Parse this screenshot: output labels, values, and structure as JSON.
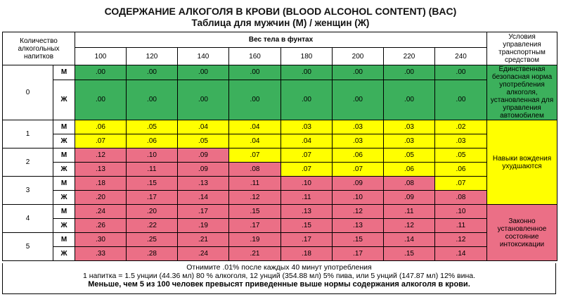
{
  "title": "СОДЕРЖАНИЕ АЛКОГОЛЯ В КРОВИ (BLOOD ALCOHOL CONTENT) (BAC)",
  "subtitle": "Таблица для мужчин (М) / женщин (Ж)",
  "header": {
    "drinks_label": "Количество алкогольных напитков",
    "weight_label": "Вес тела в фунтах",
    "conditions_label": "Условия управления транспортным средством",
    "weights": [
      "100",
      "120",
      "140",
      "160",
      "180",
      "200",
      "220",
      "240"
    ]
  },
  "colors": {
    "green": "#3cb05c",
    "yellow": "#ffff00",
    "red": "#eb6f86"
  },
  "groups": [
    {
      "drinks": "0",
      "rows": [
        {
          "sex": "М",
          "values": [
            ".00",
            ".00",
            ".00",
            ".00",
            ".00",
            ".00",
            ".00",
            ".00"
          ],
          "colors": [
            "g",
            "g",
            "g",
            "g",
            "g",
            "g",
            "g",
            "g"
          ]
        },
        {
          "sex": "Ж",
          "values": [
            ".00",
            ".00",
            ".00",
            ".00",
            ".00",
            ".00",
            ".00",
            ".00"
          ],
          "colors": [
            "g",
            "g",
            "g",
            "g",
            "g",
            "g",
            "g",
            "g"
          ]
        }
      ]
    },
    {
      "drinks": "1",
      "rows": [
        {
          "sex": "М",
          "values": [
            ".06",
            ".05",
            ".04",
            ".04",
            ".03",
            ".03",
            ".03",
            ".02"
          ],
          "colors": [
            "y",
            "y",
            "y",
            "y",
            "y",
            "y",
            "y",
            "y"
          ]
        },
        {
          "sex": "Ж",
          "values": [
            ".07",
            ".06",
            ".05",
            ".04",
            ".04",
            ".03",
            ".03",
            ".03"
          ],
          "colors": [
            "y",
            "y",
            "y",
            "y",
            "y",
            "y",
            "y",
            "y"
          ]
        }
      ]
    },
    {
      "drinks": "2",
      "rows": [
        {
          "sex": "М",
          "values": [
            ".12",
            ".10",
            ".09",
            ".07",
            ".07",
            ".06",
            ".05",
            ".05"
          ],
          "colors": [
            "r",
            "r",
            "r",
            "y",
            "y",
            "y",
            "y",
            "y"
          ]
        },
        {
          "sex": "Ж",
          "values": [
            ".13",
            ".11",
            ".09",
            ".08",
            ".07",
            ".07",
            ".06",
            ".06"
          ],
          "colors": [
            "r",
            "r",
            "r",
            "r",
            "y",
            "y",
            "y",
            "y"
          ]
        }
      ]
    },
    {
      "drinks": "3",
      "rows": [
        {
          "sex": "М",
          "values": [
            ".18",
            ".15",
            ".13",
            ".11",
            ".10",
            ".09",
            ".08",
            ".07"
          ],
          "colors": [
            "r",
            "r",
            "r",
            "r",
            "r",
            "r",
            "r",
            "y"
          ]
        },
        {
          "sex": "Ж",
          "values": [
            ".20",
            ".17",
            ".14",
            ".12",
            ".11",
            ".10",
            ".09",
            ".08"
          ],
          "colors": [
            "r",
            "r",
            "r",
            "r",
            "r",
            "r",
            "r",
            "r"
          ]
        }
      ]
    },
    {
      "drinks": "4",
      "rows": [
        {
          "sex": "М",
          "values": [
            ".24",
            ".20",
            ".17",
            ".15",
            ".13",
            ".12",
            ".11",
            ".10"
          ],
          "colors": [
            "r",
            "r",
            "r",
            "r",
            "r",
            "r",
            "r",
            "r"
          ]
        },
        {
          "sex": "Ж",
          "values": [
            ".26",
            ".22",
            ".19",
            ".17",
            ".15",
            ".13",
            ".12",
            ".11"
          ],
          "colors": [
            "r",
            "r",
            "r",
            "r",
            "r",
            "r",
            "r",
            "r"
          ]
        }
      ]
    },
    {
      "drinks": "5",
      "rows": [
        {
          "sex": "М",
          "values": [
            ".30",
            ".25",
            ".21",
            ".19",
            ".17",
            ".15",
            ".14",
            ".12"
          ],
          "colors": [
            "r",
            "r",
            "r",
            "r",
            "r",
            "r",
            "r",
            "r"
          ]
        },
        {
          "sex": "Ж",
          "values": [
            ".33",
            ".28",
            ".24",
            ".21",
            ".18",
            ".17",
            ".15",
            ".14"
          ],
          "colors": [
            "r",
            "r",
            "r",
            "r",
            "r",
            "r",
            "r",
            "r"
          ]
        }
      ]
    }
  ],
  "conditions": {
    "safe": "Единственная безопасная норма употребления алкоголя, установленная для управления автомобилем",
    "impaired": "Навыки вождения ухудшаются",
    "intoxicated": "Законно установленное состояние интоксикации"
  },
  "footer": {
    "line1": "Отнимите .01% после каждых 40 минут употребления",
    "line2": "1 напитка = 1.5 унции (44.36 мл) 80 % алкоголя, 12 унций (354.88 мл) 5% пива, или 5 унций (147.87 мл) 12% вина.",
    "line3": "Меньше, чем 5 из 100 человек превысят приведенные выше нормы содержания алкоголя в крови."
  }
}
